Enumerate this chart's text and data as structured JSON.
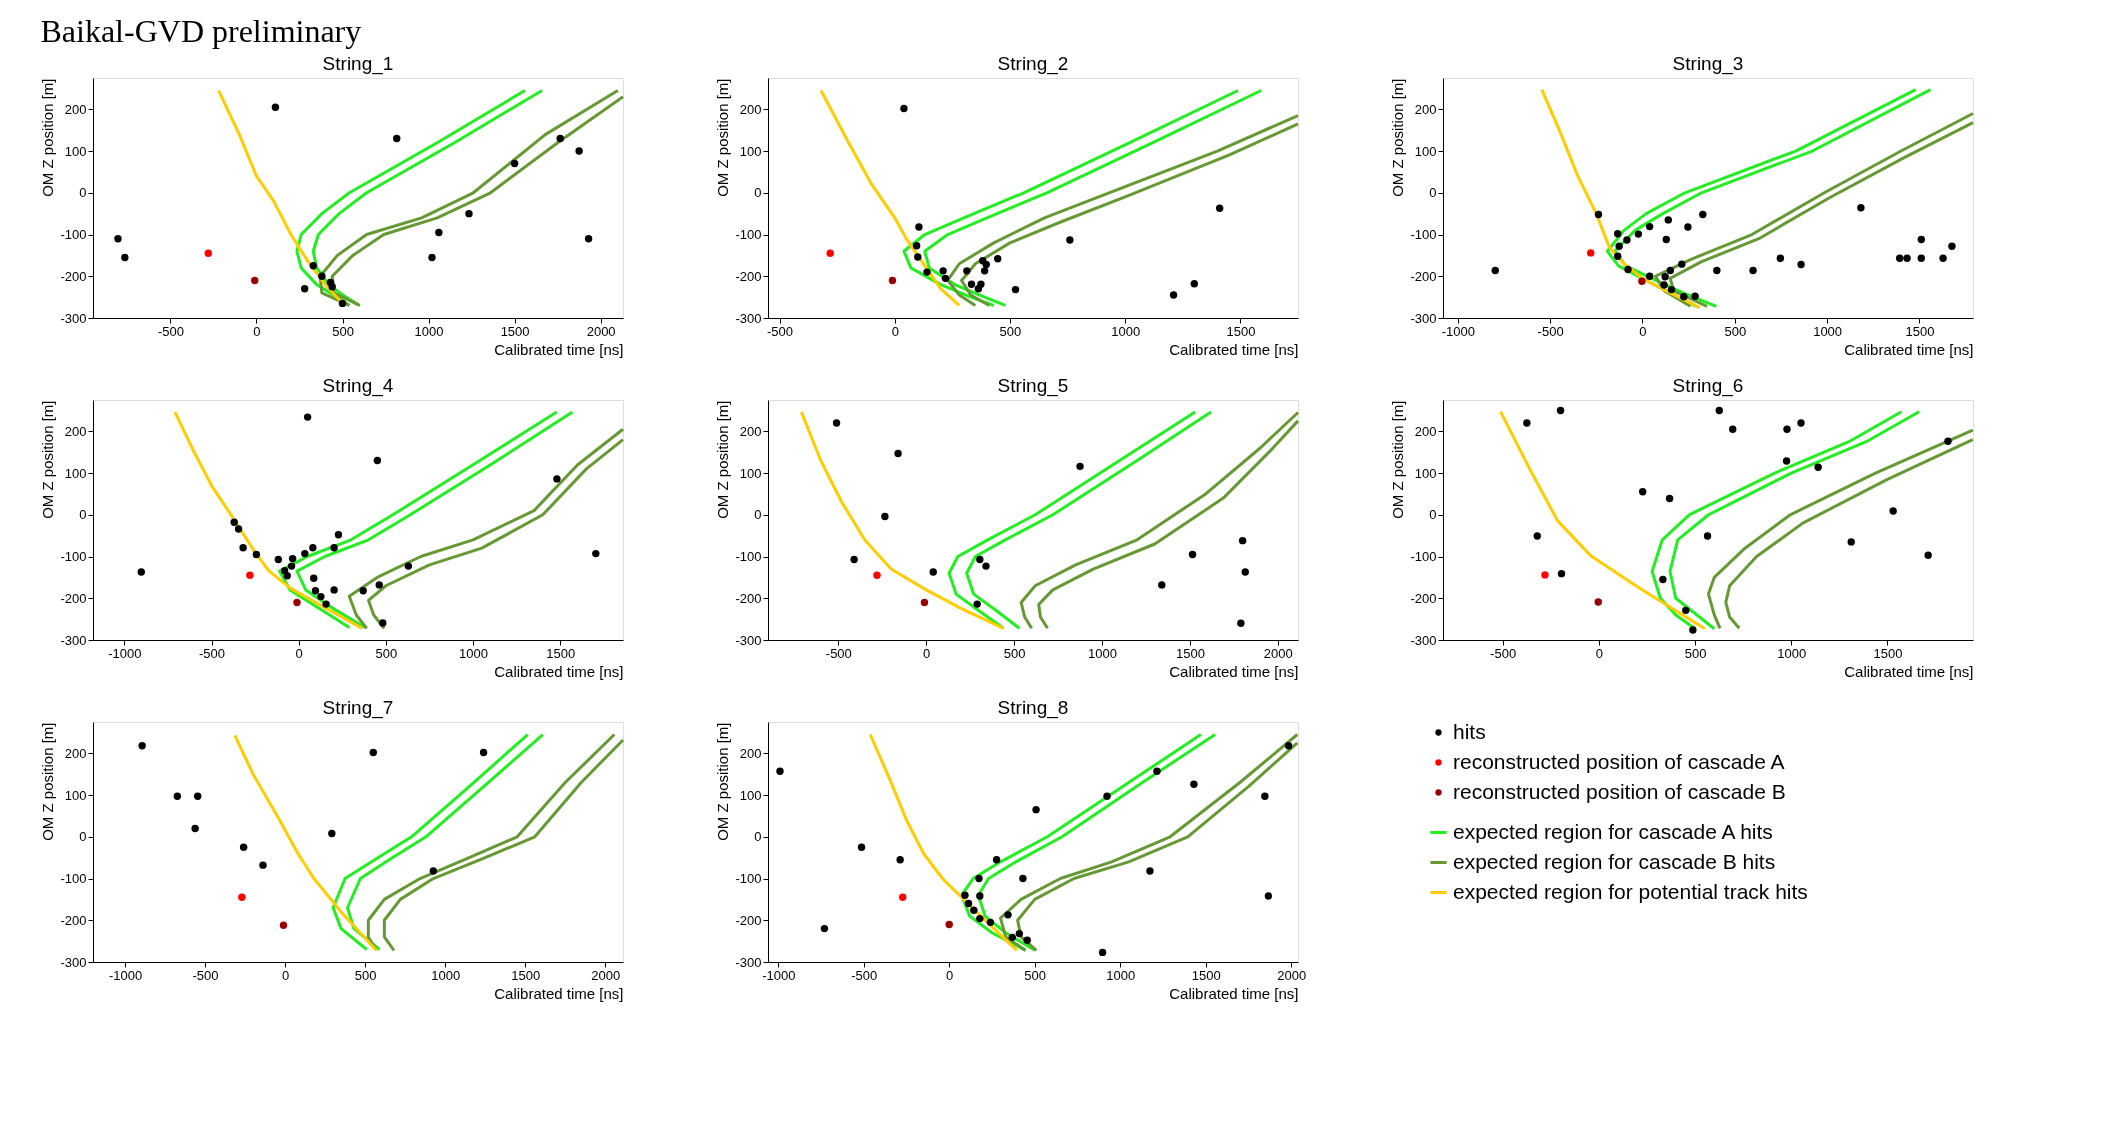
{
  "chart_data": [
    {
      "type": "scatter",
      "title": "String_1",
      "annotations": [
        "Baikal-GVD preliminary"
      ],
      "xlabel": "Calibrated time [ns]",
      "ylabel": "OM Z position [m]",
      "xlim": [
        -950,
        2130
      ],
      "ylim": [
        -300,
        275
      ],
      "xticks": [
        -500,
        0,
        500,
        1000,
        1500,
        2000
      ],
      "yticks": [
        -300,
        -200,
        -100,
        0,
        100,
        200
      ],
      "grid": false,
      "series": [
        {
          "type": "line",
          "color": "#22ee22",
          "x": [
            1560,
            1050,
            540,
            380,
            260,
            235,
            260,
            350,
            470,
            540
          ],
          "values": [
            245,
            120,
            0,
            -50,
            -100,
            -140,
            -180,
            -220,
            -250,
            -270
          ]
        },
        {
          "type": "line",
          "color": "#22ee22",
          "x": [
            1660,
            1150,
            640,
            480,
            360,
            330,
            350,
            420,
            520,
            600
          ],
          "values": [
            245,
            120,
            0,
            -50,
            -100,
            -140,
            -180,
            -220,
            -250,
            -270
          ]
        },
        {
          "type": "line",
          "color": "#669933",
          "x": [
            2100,
            1680,
            1260,
            960,
            640,
            470,
            370,
            380,
            540
          ],
          "values": [
            245,
            140,
            0,
            -60,
            -100,
            -150,
            -200,
            -240,
            -270
          ]
        },
        {
          "type": "line",
          "color": "#669933",
          "x": [
            2130,
            1750,
            1360,
            1050,
            740,
            560,
            440,
            450,
            600
          ],
          "values": [
            230,
            120,
            0,
            -60,
            -100,
            -150,
            -200,
            -240,
            -270
          ]
        },
        {
          "type": "line",
          "color": "#ffcc00",
          "x": [
            -220,
            -100,
            0,
            100,
            200,
            300,
            400,
            510
          ],
          "values": [
            245,
            140,
            40,
            -20,
            -100,
            -165,
            -220,
            -270
          ]
        },
        {
          "marker": "circle",
          "color": "#000000",
          "x": [
            -805,
            -765,
            110,
            815,
            1500,
            1765,
            1875,
            1930,
            1060,
            1235,
            1020,
            280,
            330,
            380,
            440,
            430,
            500
          ],
          "values": [
            -110,
            -155,
            205,
            130,
            70,
            130,
            100,
            -110,
            -95,
            -50,
            -155,
            -230,
            -175,
            -200,
            -225,
            -215,
            -265
          ]
        },
        {
          "marker": "circle",
          "color": "#ff0000",
          "x": [
            -280
          ],
          "values": [
            -145
          ]
        },
        {
          "marker": "circle",
          "color": "#990000",
          "x": [
            -10
          ],
          "values": [
            -210
          ]
        }
      ]
    },
    {
      "type": "scatter",
      "title": "String_2",
      "xlabel": "Calibrated time [ns]",
      "ylabel": "OM Z position [m]",
      "xlim": [
        -550,
        1750
      ],
      "ylim": [
        -300,
        275
      ],
      "xticks": [
        -500,
        0,
        500,
        1000,
        1500
      ],
      "yticks": [
        -300,
        -200,
        -100,
        0,
        100,
        200
      ],
      "grid": false,
      "series": [
        {
          "type": "line",
          "color": "#22ee22",
          "x": [
            1490,
            1020,
            560,
            300,
            130,
            40,
            70,
            200,
            330,
            430
          ],
          "values": [
            245,
            120,
            0,
            -60,
            -100,
            -140,
            -180,
            -220,
            -250,
            -270
          ]
        },
        {
          "type": "line",
          "color": "#22ee22",
          "x": [
            1590,
            1120,
            660,
            400,
            230,
            130,
            150,
            260,
            390,
            480
          ],
          "values": [
            245,
            120,
            0,
            -60,
            -100,
            -140,
            -180,
            -220,
            -250,
            -270
          ]
        },
        {
          "type": "line",
          "color": "#669933",
          "x": [
            1750,
            1400,
            930,
            650,
            430,
            280,
            230,
            280,
            350
          ],
          "values": [
            185,
            100,
            0,
            -60,
            -120,
            -170,
            -210,
            -245,
            -270
          ]
        },
        {
          "type": "line",
          "color": "#669933",
          "x": [
            1750,
            1450,
            1000,
            720,
            500,
            350,
            290,
            330,
            410
          ],
          "values": [
            165,
            90,
            -10,
            -70,
            -120,
            -170,
            -210,
            -245,
            -270
          ]
        },
        {
          "type": "line",
          "color": "#ffcc00",
          "x": [
            -320,
            -200,
            -100,
            0,
            50,
            100,
            150,
            200,
            280
          ],
          "values": [
            245,
            120,
            20,
            -60,
            -110,
            -150,
            -190,
            -230,
            -270
          ]
        },
        {
          "marker": "circle",
          "color": "#000000",
          "x": [
            40,
            95,
            100,
            105,
            210,
            220,
            313,
            382,
            397,
            390,
            333,
            363,
            374,
            447,
            524,
            760,
            1410,
            1300,
            1210,
            140
          ],
          "values": [
            202,
            -127,
            -154,
            -82,
            -187,
            -205,
            -187,
            -163,
            -172,
            -187,
            -219,
            -230,
            -219,
            -158,
            -232,
            -113,
            -37,
            -218,
            -245,
            -190
          ]
        },
        {
          "marker": "circle",
          "color": "#ff0000",
          "x": [
            -280
          ],
          "values": [
            -145
          ]
        },
        {
          "marker": "circle",
          "color": "#990000",
          "x": [
            -10
          ],
          "values": [
            -210
          ]
        }
      ]
    },
    {
      "type": "scatter",
      "title": "String_3",
      "xlabel": "Calibrated time [ns]",
      "ylabel": "OM Z position [m]",
      "xlim": [
        -1080,
        1790
      ],
      "ylim": [
        -300,
        275
      ],
      "xticks": [
        -1000,
        -500,
        0,
        500,
        1000,
        1500
      ],
      "yticks": [
        -300,
        -200,
        -100,
        0,
        100,
        200
      ],
      "grid": false,
      "series": [
        {
          "type": "line",
          "color": "#22ee22",
          "x": [
            1480,
            830,
            230,
            20,
            -100,
            -190,
            -130,
            0,
            150,
            290
          ],
          "values": [
            247,
            100,
            0,
            -50,
            -90,
            -140,
            -175,
            -205,
            -240,
            -272
          ]
        },
        {
          "type": "line",
          "color": "#22ee22",
          "x": [
            1560,
            920,
            320,
            110,
            -40,
            -150,
            -90,
            50,
            220,
            400
          ],
          "values": [
            247,
            100,
            0,
            -50,
            -90,
            -140,
            -175,
            -205,
            -240,
            -272
          ]
        },
        {
          "type": "line",
          "color": "#669933",
          "x": [
            1790,
            1400,
            985,
            593,
            260,
            70,
            120,
            260
          ],
          "values": [
            190,
            100,
            0,
            -100,
            -160,
            -200,
            -235,
            -272
          ]
        },
        {
          "type": "line",
          "color": "#669933",
          "x": [
            1790,
            1420,
            1020,
            630,
            320,
            150,
            170,
            350
          ],
          "values": [
            168,
            85,
            -10,
            -110,
            -165,
            -205,
            -235,
            -272
          ]
        },
        {
          "type": "line",
          "color": "#ffcc00",
          "x": [
            -545,
            -450,
            -350,
            -250,
            -180,
            -100,
            0,
            150,
            310
          ],
          "values": [
            247,
            150,
            40,
            -50,
            -130,
            -170,
            -205,
            -240,
            -275
          ]
        },
        {
          "marker": "circle",
          "color": "#000000",
          "x": [
            -797,
            -238,
            -134,
            -84,
            -22,
            39,
            140,
            327,
            246,
            129,
            -126,
            -134,
            -78,
            39,
            123,
            151,
            213,
            117,
            157,
            224,
            285,
            403,
            599,
            747,
            859,
            1183,
            1393,
            1433,
            1510,
            1628,
            1510,
            1676
          ],
          "values": [
            -186,
            -52,
            -98,
            -113,
            -99,
            -81,
            -65,
            -52,
            -82,
            -112,
            -128,
            -152,
            -184,
            -200,
            -201,
            -186,
            -171,
            -221,
            -232,
            -249,
            -248,
            -186,
            -186,
            -157,
            -172,
            -36,
            -157,
            -157,
            -157,
            -157,
            -112,
            -128
          ]
        },
        {
          "marker": "circle",
          "color": "#ff0000",
          "x": [
            -280
          ],
          "values": [
            -144
          ]
        },
        {
          "marker": "circle",
          "color": "#990000",
          "x": [
            -3
          ],
          "values": [
            -212
          ]
        }
      ]
    },
    {
      "type": "scatter",
      "title": "String_4",
      "xlabel": "Calibrated time [ns]",
      "ylabel": "OM Z position [m]",
      "xlim": [
        -1180,
        1860
      ],
      "ylim": [
        -300,
        275
      ],
      "xticks": [
        -1000,
        -500,
        0,
        500,
        1000,
        1500
      ],
      "yticks": [
        -300,
        -200,
        -100,
        0,
        100,
        200
      ],
      "grid": false,
      "series": [
        {
          "type": "line",
          "color": "#22ee22",
          "x": [
            1480,
            1000,
            540,
            300,
            50,
            -110,
            -50,
            100,
            290
          ],
          "values": [
            246,
            120,
            0,
            -60,
            -100,
            -135,
            -180,
            -220,
            -270
          ]
        },
        {
          "type": "line",
          "color": "#22ee22",
          "x": [
            1570,
            1100,
            640,
            400,
            150,
            -10,
            40,
            180,
            380
          ],
          "values": [
            246,
            120,
            0,
            -60,
            -100,
            -135,
            -180,
            -220,
            -270
          ]
        },
        {
          "type": "line",
          "color": "#669933",
          "x": [
            1860,
            1600,
            1350,
            1000,
            700,
            450,
            290,
            330,
            390
          ],
          "values": [
            205,
            120,
            10,
            -60,
            -100,
            -150,
            -195,
            -240,
            -272
          ]
        },
        {
          "type": "line",
          "color": "#669933",
          "x": [
            1860,
            1650,
            1400,
            1050,
            750,
            500,
            400,
            430,
            490
          ],
          "values": [
            180,
            110,
            0,
            -80,
            -120,
            -170,
            -205,
            -240,
            -272
          ]
        },
        {
          "type": "line",
          "color": "#ffcc00",
          "x": [
            -710,
            -600,
            -500,
            -370,
            -250,
            -170,
            -50,
            130,
            365
          ],
          "values": [
            246,
            150,
            70,
            -12,
            -90,
            -135,
            -175,
            -218,
            -272
          ]
        },
        {
          "marker": "circle",
          "color": "#000000",
          "x": [
            -903,
            51,
            451,
            1481,
            1704,
            -370,
            -345,
            -319,
            -243,
            -117,
            -81,
            -66,
            -41,
            -35,
            35,
            81,
            203,
            228,
            86,
            96,
            127,
            203,
            157,
            370,
            462,
            629,
            482
          ],
          "values": [
            -137,
            234,
            130,
            86,
            -93,
            -18,
            -34,
            -79,
            -95,
            -107,
            -134,
            -146,
            -123,
            -105,
            -93,
            -79,
            -79,
            -48,
            -152,
            -182,
            -196,
            -180,
            -214,
            -182,
            -168,
            -123,
            -259
          ]
        },
        {
          "marker": "circle",
          "color": "#ff0000",
          "x": [
            -280
          ],
          "values": [
            -145
          ]
        },
        {
          "marker": "circle",
          "color": "#990000",
          "x": [
            -10
          ],
          "values": [
            -210
          ]
        }
      ]
    },
    {
      "type": "scatter",
      "title": "String_5",
      "xlabel": "Calibrated time [ns]",
      "ylabel": "OM Z position [m]",
      "xlim": [
        -900,
        2115
      ],
      "ylim": [
        -300,
        275
      ],
      "xticks": [
        -500,
        0,
        500,
        1000,
        1500,
        2000
      ],
      "yticks": [
        -300,
        -200,
        -100,
        0,
        100,
        200
      ],
      "grid": false,
      "series": [
        {
          "type": "line",
          "color": "#22ee22",
          "x": [
            1530,
            1100,
            620,
            350,
            180,
            130,
            170,
            300,
            440
          ],
          "values": [
            246,
            130,
            0,
            -60,
            -100,
            -140,
            -190,
            -230,
            -272
          ]
        },
        {
          "type": "line",
          "color": "#22ee22",
          "x": [
            1620,
            1200,
            720,
            450,
            280,
            230,
            270,
            400,
            530
          ],
          "values": [
            246,
            130,
            0,
            -60,
            -100,
            -140,
            -190,
            -230,
            -272
          ]
        },
        {
          "type": "line",
          "color": "#669933",
          "x": [
            2115,
            1900,
            1590,
            1200,
            850,
            620,
            540,
            560,
            600
          ],
          "values": [
            245,
            160,
            50,
            -60,
            -120,
            -170,
            -210,
            -245,
            -272
          ]
        },
        {
          "type": "line",
          "color": "#669933",
          "x": [
            2115,
            1950,
            1690,
            1300,
            950,
            720,
            640,
            650,
            690
          ],
          "values": [
            225,
            150,
            40,
            -70,
            -130,
            -180,
            -215,
            -245,
            -272
          ]
        },
        {
          "type": "line",
          "color": "#ffcc00",
          "x": [
            -710,
            -600,
            -480,
            -350,
            -200,
            0,
            200,
            440
          ],
          "values": [
            246,
            130,
            30,
            -60,
            -130,
            -180,
            -225,
            -272
          ]
        },
        {
          "marker": "circle",
          "color": "#000000",
          "x": [
            -510,
            -160,
            -235,
            -410,
            40,
            305,
            340,
            290,
            875,
            1515,
            1340,
            1800,
            1815,
            1790
          ],
          "values": [
            220,
            147,
            -4,
            -107,
            -137,
            -107,
            -123,
            -214,
            116,
            -95,
            -168,
            -62,
            -137,
            -260
          ]
        },
        {
          "marker": "circle",
          "color": "#ff0000",
          "x": [
            -280
          ],
          "values": [
            -145
          ]
        },
        {
          "marker": "circle",
          "color": "#990000",
          "x": [
            -10
          ],
          "values": [
            -210
          ]
        }
      ]
    },
    {
      "type": "scatter",
      "title": "String_6",
      "xlabel": "Calibrated time [ns]",
      "ylabel": "OM Z position [m]",
      "xlim": [
        -810,
        1945
      ],
      "ylim": [
        -300,
        275
      ],
      "xticks": [
        -500,
        0,
        500,
        1000,
        1500
      ],
      "yticks": [
        -300,
        -200,
        -100,
        0,
        100,
        200
      ],
      "grid": false,
      "series": [
        {
          "type": "line",
          "color": "#22ee22",
          "x": [
            1573,
            1300,
            914,
            470,
            330,
            277,
            320,
            400,
            500
          ],
          "values": [
            247,
            175,
            100,
            0,
            -60,
            -136,
            -200,
            -240,
            -273
          ]
        },
        {
          "type": "line",
          "color": "#22ee22",
          "x": [
            1665,
            1390,
            1000,
            570,
            410,
            370,
            400,
            510,
            600
          ],
          "values": [
            247,
            175,
            100,
            0,
            -60,
            -136,
            -200,
            -240,
            -273
          ]
        },
        {
          "type": "line",
          "color": "#669933",
          "x": [
            1944,
            1438,
            995,
            760,
            600,
            570,
            600,
            630
          ],
          "values": [
            203,
            100,
            0,
            -80,
            -150,
            -190,
            -240,
            -272
          ]
        },
        {
          "type": "line",
          "color": "#669933",
          "x": [
            1944,
            1500,
            1060,
            820,
            680,
            660,
            680,
            730
          ],
          "values": [
            180,
            85,
            -20,
            -100,
            -170,
            -210,
            -245,
            -272
          ]
        },
        {
          "type": "line",
          "color": "#ffcc00",
          "x": [
            -511,
            -363,
            -215,
            -40,
            202,
            551
          ],
          "values": [
            247,
            113,
            -14,
            -99,
            -173,
            -273
          ]
        },
        {
          "marker": "circle",
          "color": "#000000",
          "x": [
            -374,
            -199,
            626,
            696,
            978,
            1051,
            976,
            1140,
            228,
            368,
            -320,
            565,
            1312,
            1530,
            1712,
            1815,
            -194,
            333,
            452,
            489
          ],
          "values": [
            220,
            250,
            250,
            205,
            205,
            220,
            129,
            114,
            55,
            39,
            -51,
            -51,
            -65,
            9,
            -97,
            176,
            -141,
            -155,
            -229,
            -276
          ]
        },
        {
          "marker": "circle",
          "color": "#ff0000",
          "x": [
            -280
          ],
          "values": [
            -144
          ]
        },
        {
          "marker": "circle",
          "color": "#990000",
          "x": [
            -3
          ],
          "values": [
            -209
          ]
        }
      ]
    },
    {
      "type": "scatter",
      "title": "String_7",
      "xlabel": "Calibrated time [ns]",
      "ylabel": "OM Z position [m]",
      "xlim": [
        -1200,
        2111
      ],
      "ylim": [
        -300,
        275
      ],
      "xticks": [
        -1000,
        -500,
        0,
        500,
        1000,
        1500,
        2000
      ],
      "yticks": [
        -300,
        -200,
        -100,
        0,
        100,
        200
      ],
      "grid": false,
      "series": [
        {
          "type": "line",
          "color": "#22ee22",
          "x": [
            1516,
            1150,
            790,
            580,
            375,
            300,
            350,
            510
          ],
          "values": [
            245,
            120,
            0,
            -50,
            -100,
            -170,
            -220,
            -270
          ]
        },
        {
          "type": "line",
          "color": "#22ee22",
          "x": [
            1610,
            1240,
            880,
            670,
            470,
            390,
            430,
            590
          ],
          "values": [
            245,
            120,
            0,
            -50,
            -100,
            -170,
            -220,
            -270
          ]
        },
        {
          "type": "line",
          "color": "#669933",
          "x": [
            2057,
            1750,
            1450,
            1150,
            843,
            620,
            520,
            520,
            570
          ],
          "values": [
            245,
            130,
            0,
            -50,
            -100,
            -150,
            -200,
            -240,
            -272
          ]
        },
        {
          "type": "line",
          "color": "#669933",
          "x": [
            2111,
            1850,
            1560,
            1250,
            926,
            720,
            620,
            620,
            680
          ],
          "values": [
            232,
            130,
            0,
            -50,
            -100,
            -150,
            -200,
            -240,
            -272
          ]
        },
        {
          "type": "line",
          "color": "#ffcc00",
          "x": [
            -314,
            -200,
            -40,
            80,
            180,
            350,
            570
          ],
          "values": [
            243,
            150,
            44,
            -40,
            -100,
            -180,
            -272
          ]
        },
        {
          "marker": "circle",
          "color": "#000000",
          "x": [
            -893,
            -673,
            -546,
            -562,
            -259,
            -138,
            292,
            551,
            1240,
            926
          ],
          "values": [
            218,
            97,
            97,
            20,
            -25,
            -68,
            8,
            202,
            202,
            -82
          ]
        },
        {
          "marker": "circle",
          "color": "#ff0000",
          "x": [
            -270
          ],
          "values": [
            -145
          ]
        },
        {
          "marker": "circle",
          "color": "#990000",
          "x": [
            -10
          ],
          "values": [
            -212
          ]
        }
      ]
    },
    {
      "type": "scatter",
      "title": "String_8",
      "xlabel": "Calibrated time [ns]",
      "ylabel": "OM Z position [m]",
      "xlim": [
        -1060,
        2040
      ],
      "ylim": [
        -300,
        275
      ],
      "xticks": [
        -1000,
        -500,
        0,
        500,
        1000,
        1500,
        2000
      ],
      "yticks": [
        -300,
        -200,
        -100,
        0,
        100,
        200
      ],
      "grid": false,
      "legend": "right",
      "series": [
        {
          "type": "line",
          "name": "expected region for cascade A hits",
          "color": "#22ee22",
          "x": [
            1472,
            1050,
            574,
            300,
            140,
            72,
            120,
            250,
            446
          ],
          "values": [
            245,
            130,
            0,
            -60,
            -100,
            -140,
            -190,
            -230,
            -272
          ]
        },
        {
          "type": "line",
          "color": "#22ee22",
          "x": [
            1555,
            1130,
            660,
            390,
            230,
            170,
            210,
            330,
            500
          ],
          "values": [
            245,
            130,
            0,
            -60,
            -100,
            -140,
            -190,
            -230,
            -272
          ]
        },
        {
          "type": "line",
          "name": "expected region for cascade B hits",
          "color": "#669933",
          "x": [
            2036,
            1700,
            1292,
            950,
            650,
            420,
            300,
            330,
            446
          ],
          "values": [
            245,
            130,
            0,
            -60,
            -100,
            -150,
            -195,
            -240,
            -272
          ]
        },
        {
          "type": "line",
          "color": "#669933",
          "x": [
            2036,
            1750,
            1395,
            1050,
            730,
            500,
            400,
            420,
            510
          ],
          "values": [
            225,
            120,
            0,
            -60,
            -100,
            -150,
            -200,
            -240,
            -272
          ]
        },
        {
          "type": "line",
          "name": "expected region for potential track hits",
          "color": "#ffcc00",
          "x": [
            -462,
            -350,
            -250,
            -150,
            -40,
            160,
            395
          ],
          "values": [
            245,
            140,
            40,
            -40,
            -100,
            -180,
            -272
          ]
        },
        {
          "marker": "circle",
          "name": "hits",
          "color": "#000000",
          "x": [
            -990,
            -730,
            -513,
            -287,
            277,
            174,
            179,
            508,
            923,
            1215,
            1431,
            1846,
            1985,
            1174,
            1867,
            897,
            431,
            344,
            410,
            456,
            369,
            92,
            113,
            144,
            179,
            241
          ],
          "values": [
            157,
            -220,
            -25,
            -55,
            -55,
            -100,
            -142,
            65,
            97,
            157,
            126,
            97,
            218,
            -82,
            -142,
            -277,
            -100,
            -187,
            -232,
            -248,
            -241,
            -140,
            -160,
            -176,
            -196,
            -205
          ]
        },
        {
          "marker": "circle",
          "name": "reconstructed position of cascade A",
          "color": "#ff0000",
          "x": [
            -272
          ],
          "values": [
            -145
          ]
        },
        {
          "marker": "circle",
          "name": "reconstructed position of cascade B",
          "color": "#990000",
          "x": [
            0
          ],
          "values": [
            -210
          ]
        }
      ]
    }
  ]
}
